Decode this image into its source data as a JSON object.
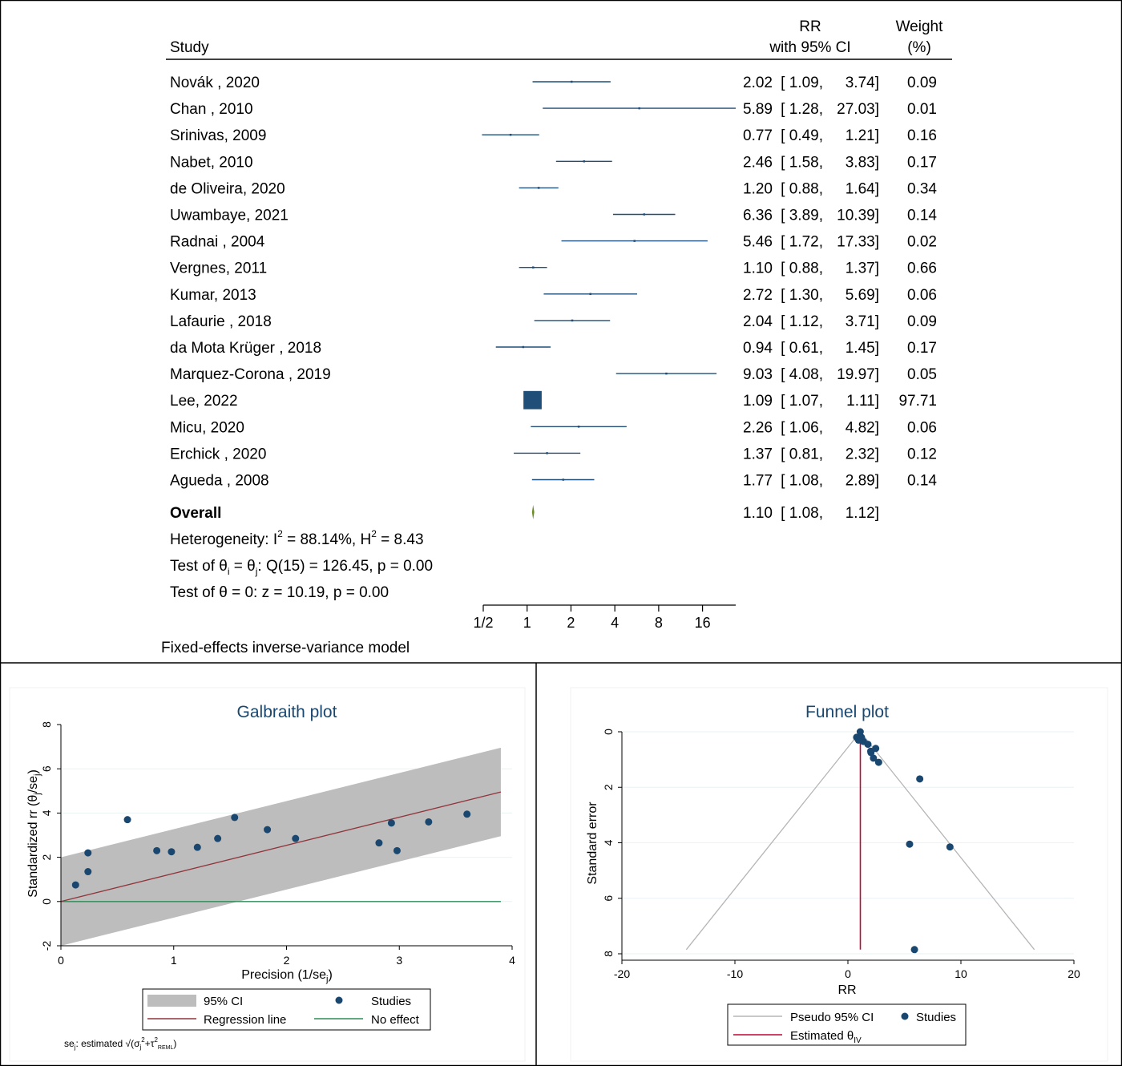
{
  "forest": {
    "header": {
      "study": "Study",
      "rr_line1": "RR",
      "rr_line2": "with 95% CI",
      "weight_line1": "Weight",
      "weight_line2": "(%)"
    },
    "studies": [
      {
        "name": "Novák , 2020",
        "rr": "2.02",
        "lo": "1.09",
        "hi": "3.74",
        "weight": "0.09"
      },
      {
        "name": "Chan , 2010",
        "rr": "5.89",
        "lo": "1.28",
        "hi": "27.03",
        "weight": "0.01"
      },
      {
        "name": "Srinivas, 2009",
        "rr": "0.77",
        "lo": "0.49",
        "hi": "1.21",
        "weight": "0.16"
      },
      {
        "name": "Nabet, 2010",
        "rr": "2.46",
        "lo": "1.58",
        "hi": "3.83",
        "weight": "0.17"
      },
      {
        "name": "de Oliveira, 2020",
        "rr": "1.20",
        "lo": "0.88",
        "hi": "1.64",
        "weight": "0.34"
      },
      {
        "name": "Uwambaye, 2021",
        "rr": "6.36",
        "lo": "3.89",
        "hi": "10.39",
        "weight": "0.14"
      },
      {
        "name": "Radnai , 2004",
        "rr": "5.46",
        "lo": "1.72",
        "hi": "17.33",
        "weight": "0.02"
      },
      {
        "name": "Vergnes, 2011",
        "rr": "1.10",
        "lo": "0.88",
        "hi": "1.37",
        "weight": "0.66"
      },
      {
        "name": "Kumar, 2013",
        "rr": "2.72",
        "lo": "1.30",
        "hi": "5.69",
        "weight": "0.06"
      },
      {
        "name": "Lafaurie , 2018",
        "rr": "2.04",
        "lo": "1.12",
        "hi": "3.71",
        "weight": "0.09"
      },
      {
        "name": "da Mota Krüger , 2018",
        "rr": "0.94",
        "lo": "0.61",
        "hi": "1.45",
        "weight": "0.17"
      },
      {
        "name": "Marquez-Corona , 2019",
        "rr": "9.03",
        "lo": "4.08",
        "hi": "19.97",
        "weight": "0.05"
      },
      {
        "name": "Lee, 2022",
        "rr": "1.09",
        "lo": "1.07",
        "hi": "1.11",
        "weight": "97.71"
      },
      {
        "name": "Micu, 2020",
        "rr": "2.26",
        "lo": "1.06",
        "hi": "4.82",
        "weight": "0.06"
      },
      {
        "name": "Erchick , 2020",
        "rr": "1.37",
        "lo": "0.81",
        "hi": "2.32",
        "weight": "0.12"
      },
      {
        "name": "Agueda , 2008",
        "rr": "1.77",
        "lo": "1.08",
        "hi": "2.89",
        "weight": "0.14"
      }
    ],
    "overall": {
      "label": "Overall",
      "rr": "1.10",
      "lo": "1.08",
      "hi": "1.12"
    },
    "heterogeneity": {
      "prefix": "Heterogeneity: I",
      "sup1": "2",
      "mid": " = 88.14%, H",
      "sup2": "2",
      "suffix": " = 8.43"
    },
    "test_theta_ij": {
      "a": "Test of θ",
      "sub1": "i",
      "b": " = θ",
      "sub2": "j",
      "c": ": Q(15) = 126.45, p = 0.00"
    },
    "test_theta0": "Test of θ = 0: z = 10.19, p = 0.00",
    "axis_ticks": [
      {
        "label": "1/2",
        "value": 0.5
      },
      {
        "label": "1",
        "value": 1
      },
      {
        "label": "2",
        "value": 2
      },
      {
        "label": "4",
        "value": 4
      },
      {
        "label": "8",
        "value": 8
      },
      {
        "label": "16",
        "value": 16
      }
    ],
    "axis_max": 27.03,
    "footnote": "Fixed-effects inverse-variance model",
    "colors": {
      "ci": "#1f4e79",
      "overall": "#6b8e23"
    }
  },
  "chart_data": [
    {
      "type": "scatter",
      "title": "Galbraith plot",
      "xlabel": "Precision (1/se",
      "xlabel_sub": "j",
      "xlabel_end": ")",
      "ylabel": "Standardized rr  (θ",
      "ylabel_sub": "j",
      "ylabel_mid": "/se",
      "ylabel_sub2": "j",
      "ylabel_end": ")",
      "xlim": [
        0,
        4
      ],
      "ylim": [
        -2,
        8
      ],
      "xticks": [
        0,
        1,
        2,
        3,
        4
      ],
      "yticks": [
        -2,
        0,
        2,
        4,
        6,
        8
      ],
      "grid": true,
      "band_x_end": 3.9,
      "band_offset": 2,
      "regression_slope": 1.27,
      "points": [
        [
          0.13,
          0.75
        ],
        [
          0.24,
          2.2
        ],
        [
          0.24,
          1.35
        ],
        [
          0.59,
          3.7
        ],
        [
          0.85,
          2.3
        ],
        [
          0.98,
          2.25
        ],
        [
          1.21,
          2.45
        ],
        [
          1.39,
          2.85
        ],
        [
          1.54,
          3.8
        ],
        [
          1.83,
          3.25
        ],
        [
          2.08,
          2.85
        ],
        [
          2.82,
          2.65
        ],
        [
          2.93,
          3.55
        ],
        [
          2.98,
          2.3
        ],
        [
          3.26,
          3.6
        ],
        [
          3.6,
          3.95
        ]
      ],
      "legend": [
        {
          "label": "95% CI",
          "kind": "band"
        },
        {
          "label": "Studies",
          "kind": "dot"
        },
        {
          "label": "Regression line",
          "kind": "regline"
        },
        {
          "label": "No effect",
          "kind": "noeffect"
        }
      ],
      "footnote": {
        "a": "se",
        "sub1": "j",
        "b": ": estimated √(σ",
        "sub2": "j",
        "sup1": "2",
        "c": "+τ",
        "sup2": "2",
        "sub3": "REML",
        "d": ")"
      },
      "colors": {
        "band": "#bdbdbd",
        "points": "#1a476f",
        "regression": "#90353b",
        "no_effect": "#2e8b57",
        "title": "#1a476f"
      }
    },
    {
      "type": "scatter",
      "title": "Funnel plot",
      "xlabel": "RR",
      "ylabel": "Standard error",
      "xlim": [
        -20,
        20
      ],
      "ylim": [
        8,
        0
      ],
      "xticks": [
        -20,
        -10,
        0,
        10,
        20
      ],
      "yticks": [
        0,
        2,
        4,
        6,
        8
      ],
      "grid": true,
      "estimate": 1.1,
      "ci_half_width_at_max": 15.4,
      "ci_max_se": 7.85,
      "points": [
        [
          0.77,
          0.2
        ],
        [
          1.09,
          0.0
        ],
        [
          1.2,
          0.2
        ],
        [
          1.1,
          0.25
        ],
        [
          0.94,
          0.3
        ],
        [
          1.37,
          0.35
        ],
        [
          1.77,
          0.45
        ],
        [
          2.02,
          0.7
        ],
        [
          2.04,
          0.75
        ],
        [
          2.46,
          0.6
        ],
        [
          2.26,
          0.95
        ],
        [
          2.72,
          1.1
        ],
        [
          6.36,
          1.7
        ],
        [
          5.46,
          4.05
        ],
        [
          9.03,
          4.15
        ],
        [
          5.89,
          7.85
        ]
      ],
      "legend": [
        {
          "label": "Pseudo 95% CI",
          "kind": "ciline"
        },
        {
          "label": "Studies",
          "kind": "dot"
        },
        {
          "label": "Estimated θ",
          "sub": "IV",
          "kind": "estline"
        }
      ],
      "colors": {
        "ci": "#b5b5b5",
        "points": "#1a476f",
        "estimate": "#c10534",
        "title": "#1a476f"
      }
    }
  ]
}
